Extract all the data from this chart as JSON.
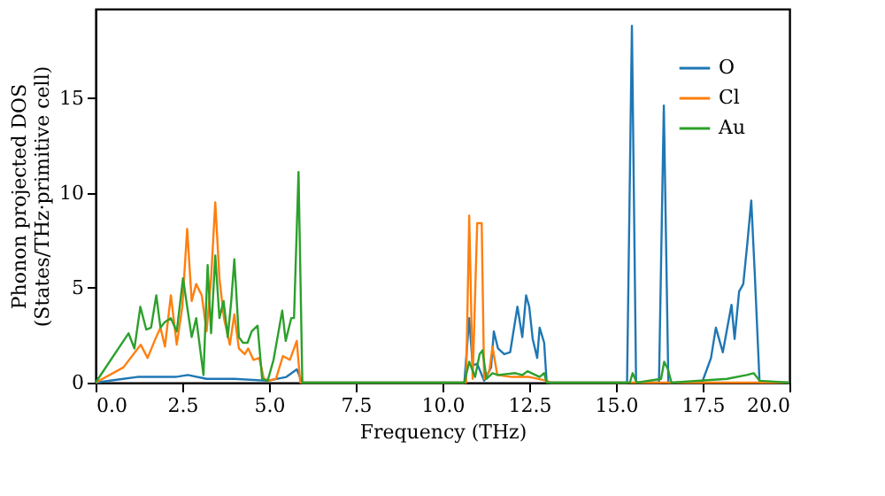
{
  "chart_data": {
    "type": "line",
    "xlabel": "Frequency (THz)",
    "ylabel": "Phonon projected DOS\n(States/THz·primitive cell)",
    "xlim": [
      0,
      20
    ],
    "ylim": [
      0,
      19.7
    ],
    "xticks": [
      {
        "value": 0,
        "label": "0.0"
      },
      {
        "value": 2.5,
        "label": "2.5"
      },
      {
        "value": 5,
        "label": "5.0"
      },
      {
        "value": 7.5,
        "label": "7.5"
      },
      {
        "value": 10,
        "label": "10.0"
      },
      {
        "value": 12.5,
        "label": "12.5"
      },
      {
        "value": 15,
        "label": "15.0"
      },
      {
        "value": 17.5,
        "label": "17.5"
      },
      {
        "value": 20,
        "label": "20.0"
      }
    ],
    "yticks": [
      0,
      5,
      10,
      15
    ],
    "grid": false,
    "legend": "top right",
    "line_style": "solid",
    "marker": "none",
    "series": [
      {
        "name": "O",
        "color": "#1f77b4",
        "x": [
          0,
          0.8,
          1.2,
          1.8,
          2.3,
          2.66,
          3.2,
          4.0,
          4.96,
          5.5,
          5.8,
          5.96,
          10.63,
          10.77,
          10.87,
          11.0,
          11.2,
          11.4,
          11.48,
          11.6,
          11.78,
          11.95,
          12.16,
          12.3,
          12.41,
          12.5,
          12.6,
          12.73,
          12.8,
          12.93,
          13.0,
          13.1,
          15.32,
          15.46,
          15.58,
          16.24,
          16.38,
          16.51,
          17.48,
          17.74,
          17.88,
          18.08,
          18.33,
          18.42,
          18.55,
          18.67,
          18.79,
          18.9,
          19.0,
          19.14,
          20
        ],
        "values": [
          0,
          0.2,
          0.3,
          0.3,
          0.3,
          0.4,
          0.2,
          0.2,
          0.1,
          0.3,
          0.7,
          0,
          0,
          3.4,
          0.9,
          1.0,
          0.1,
          0.8,
          2.7,
          1.8,
          1.5,
          1.6,
          4.0,
          2.4,
          4.6,
          4.0,
          2.3,
          1.3,
          2.9,
          2.1,
          0.1,
          0,
          0,
          18.8,
          0,
          0,
          14.6,
          0,
          0,
          1.3,
          2.9,
          1.6,
          4.1,
          2.3,
          4.8,
          5.2,
          7.4,
          9.6,
          5.8,
          0,
          0
        ]
      },
      {
        "name": "Cl",
        "color": "#ff7f0e",
        "x": [
          0,
          0.8,
          1.3,
          1.5,
          1.7,
          1.87,
          2.0,
          2.17,
          2.34,
          2.5,
          2.64,
          2.77,
          2.9,
          3.06,
          3.2,
          3.33,
          3.45,
          3.57,
          3.7,
          3.87,
          4.0,
          4.13,
          4.3,
          4.4,
          4.55,
          4.72,
          4.85,
          5.0,
          5.2,
          5.4,
          5.6,
          5.8,
          5.9,
          10.68,
          10.77,
          10.87,
          11.0,
          11.13,
          11.2,
          11.35,
          11.44,
          11.58,
          12.0,
          12.5,
          13.0,
          13.1,
          20
        ],
        "values": [
          0,
          0.8,
          2.0,
          1.3,
          2.2,
          2.9,
          1.9,
          4.6,
          2.0,
          4.0,
          8.1,
          4.3,
          5.2,
          4.6,
          2.7,
          5.5,
          9.5,
          5.5,
          3.4,
          2.0,
          3.6,
          1.8,
          1.5,
          1.8,
          1.2,
          1.3,
          0.2,
          0.1,
          0.2,
          1.4,
          1.2,
          2.2,
          0,
          0,
          8.8,
          0.2,
          8.4,
          8.4,
          0.2,
          0.6,
          1.9,
          0.4,
          0.3,
          0.3,
          0.1,
          0,
          0
        ]
      },
      {
        "name": "Au",
        "color": "#2ca02c",
        "x": [
          0,
          0.95,
          1.12,
          1.29,
          1.46,
          1.6,
          1.75,
          1.87,
          2.0,
          2.17,
          2.34,
          2.52,
          2.64,
          2.77,
          2.9,
          3.11,
          3.23,
          3.33,
          3.45,
          3.57,
          3.69,
          3.81,
          3.91,
          4.0,
          4.13,
          4.25,
          4.38,
          4.5,
          4.67,
          4.8,
          4.96,
          5.13,
          5.38,
          5.48,
          5.64,
          5.72,
          5.85,
          5.96,
          10.63,
          10.77,
          10.94,
          11.07,
          11.15,
          11.27,
          11.44,
          11.6,
          12.1,
          12.3,
          12.45,
          12.8,
          12.93,
          13.0,
          15.4,
          15.48,
          15.6,
          16.3,
          16.39,
          16.5,
          16.6,
          18.2,
          18.77,
          18.97,
          19.14,
          20
        ],
        "values": [
          0,
          2.6,
          1.8,
          4.0,
          2.8,
          2.9,
          4.6,
          2.9,
          3.2,
          3.4,
          2.7,
          5.5,
          4.0,
          2.4,
          3.4,
          0.4,
          6.2,
          2.6,
          6.7,
          3.4,
          4.3,
          2.4,
          4.3,
          6.5,
          2.4,
          2.1,
          2.1,
          2.7,
          3.0,
          0.2,
          0.1,
          1.2,
          3.8,
          2.2,
          3.4,
          3.4,
          11.1,
          0,
          0,
          1.1,
          0.3,
          1.5,
          1.7,
          0.2,
          0.5,
          0.4,
          0.5,
          0.4,
          0.6,
          0.3,
          0.5,
          0,
          0,
          0.5,
          0,
          0.2,
          1.1,
          0.7,
          0,
          0.2,
          0.4,
          0.5,
          0.1,
          0
        ]
      }
    ]
  }
}
